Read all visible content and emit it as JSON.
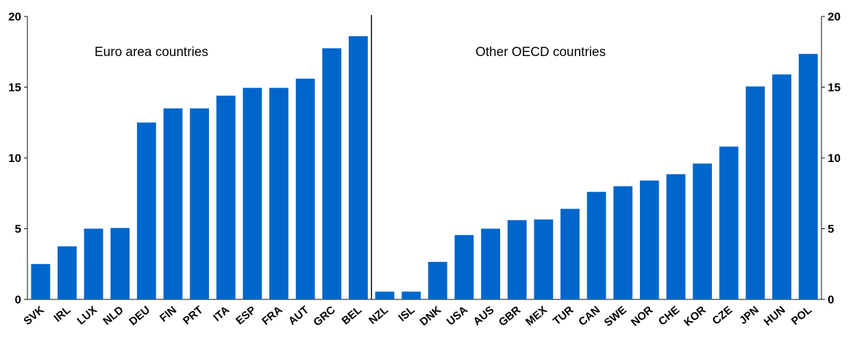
{
  "chart_data": {
    "type": "bar",
    "title": "",
    "xlabel": "",
    "ylabel": "",
    "ylim": [
      0,
      20
    ],
    "yticks": [
      0,
      5,
      10,
      15,
      20
    ],
    "grid": false,
    "bar_color": "#0066CC",
    "categories": [
      "SVK",
      "IRL",
      "LUX",
      "NLD",
      "DEU",
      "FIN",
      "PRT",
      "ITA",
      "ESP",
      "FRA",
      "AUT",
      "GRC",
      "BEL",
      "NZL",
      "ISL",
      "DNK",
      "USA",
      "AUS",
      "GBR",
      "MEX",
      "TUR",
      "CAN",
      "SWE",
      "NOR",
      "CHE",
      "KOR",
      "CZE",
      "JPN",
      "HUN",
      "POL"
    ],
    "values": [
      2.5,
      3.75,
      5.0,
      5.05,
      12.5,
      13.5,
      13.5,
      14.4,
      14.95,
      14.95,
      15.6,
      17.75,
      18.6,
      0.55,
      0.55,
      2.65,
      4.55,
      5.0,
      5.6,
      5.65,
      6.4,
      7.6,
      8.0,
      8.4,
      8.85,
      9.6,
      10.8,
      15.05,
      15.9,
      17.35
    ],
    "annotations": [
      {
        "text": "Euro area countries"
      },
      {
        "text": "Other OECD  countries"
      }
    ],
    "divider_after_index": 12
  }
}
